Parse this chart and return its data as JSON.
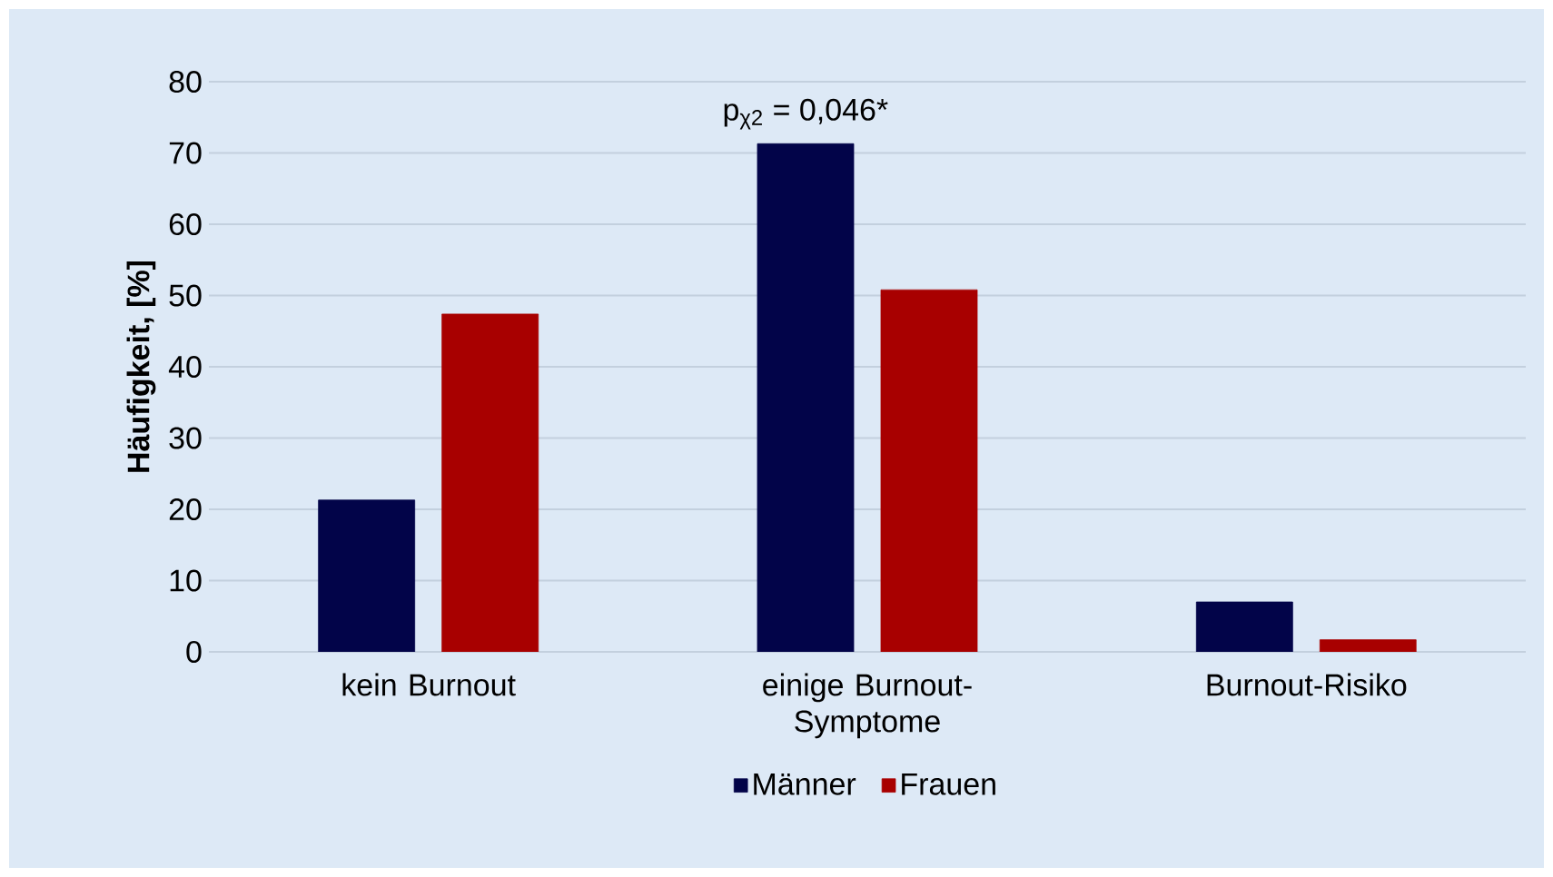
{
  "chart_data": {
    "type": "bar",
    "ylabel": "Häufigkeit, [%]",
    "categories": [
      "kein Burnout",
      "einige Burnout-Symptome",
      "Burnout-Risiko"
    ],
    "series": [
      {
        "name": "Männer",
        "color": "#020449",
        "values": [
          21.3,
          71.3,
          7.0
        ]
      },
      {
        "name": "Frauen",
        "color": "#a80000",
        "values": [
          47.4,
          50.8,
          1.7
        ]
      }
    ],
    "ylim": [
      0,
      80
    ],
    "yticks": [
      0,
      10,
      20,
      30,
      40,
      50,
      60,
      70,
      80
    ],
    "grid": "y",
    "legend": "bottom",
    "annotations": [
      "p$_{χ2}$ = 0,046*"
    ]
  }
}
